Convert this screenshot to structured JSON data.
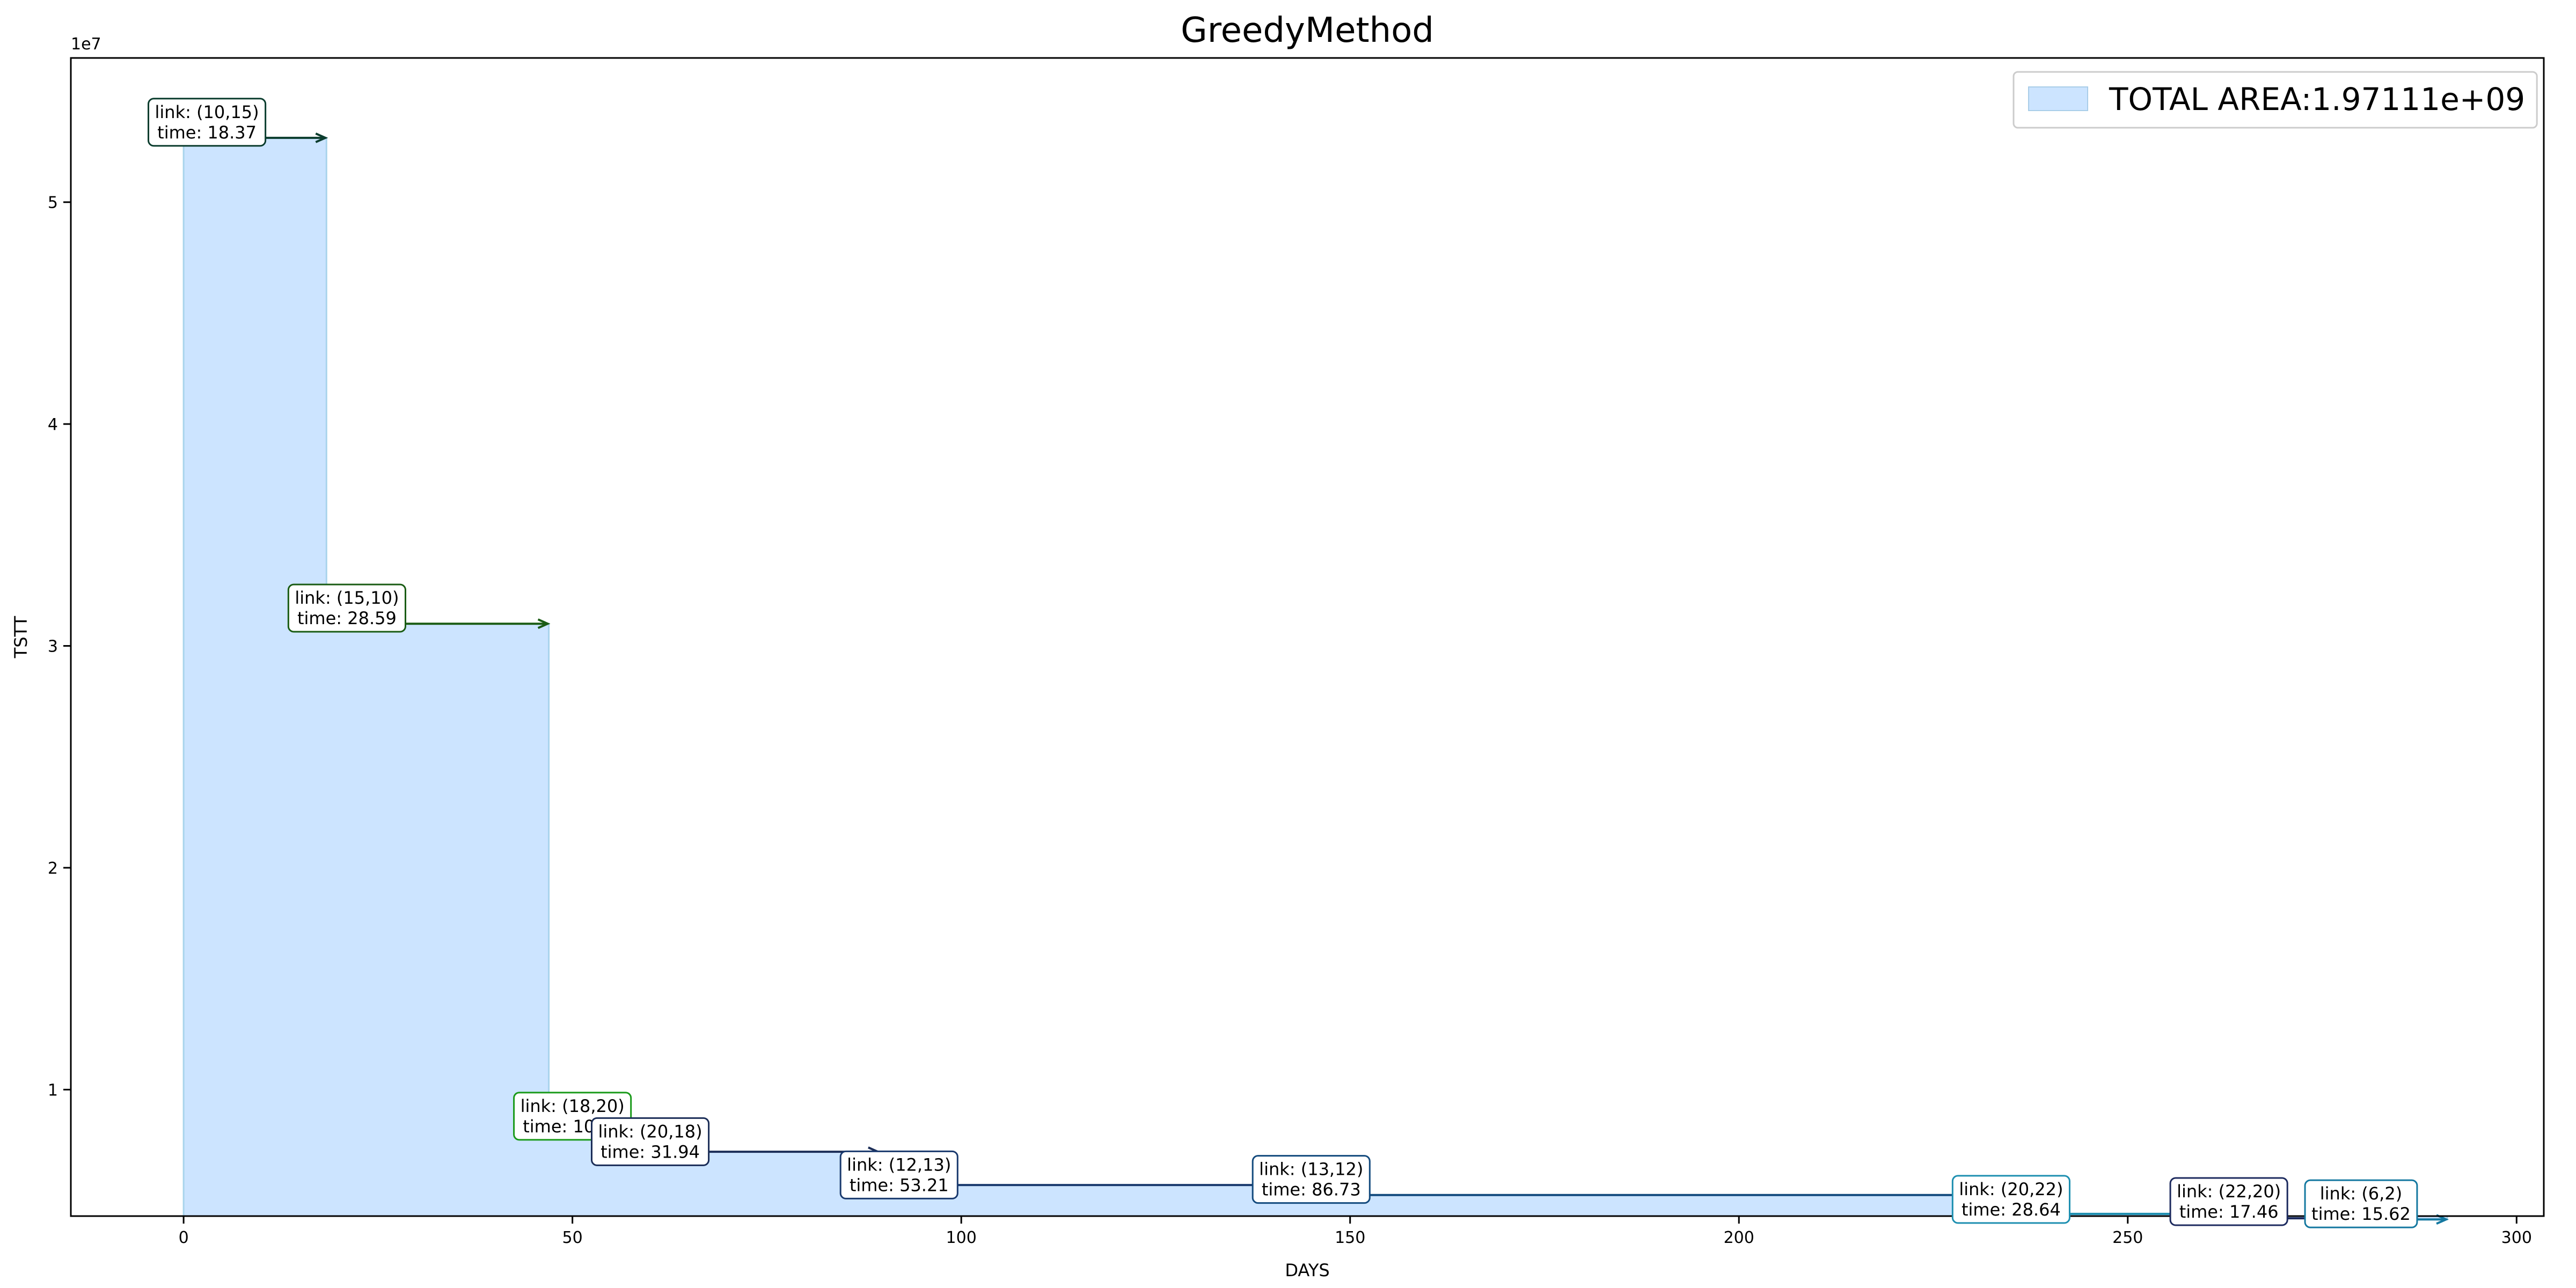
{
  "chart_data": {
    "type": "area",
    "title": "GreedyMethod",
    "xlabel": "DAYS",
    "ylabel": "TSTT",
    "y_scale_label": "1e7",
    "xlim": [
      -14.5,
      303.5
    ],
    "ylim": [
      4300000,
      56500000
    ],
    "xticks": [
      0,
      50,
      100,
      150,
      200,
      250,
      300
    ],
    "yticks": [
      10000000,
      20000000,
      30000000,
      40000000,
      50000000
    ],
    "ytick_labels": [
      "1",
      "2",
      "3",
      "4",
      "5"
    ],
    "legend_position": "top-right",
    "legend": {
      "label": "TOTAL AREA:1.97111e+09",
      "color": "#cce4ff"
    },
    "step_x": [
      0,
      18.37,
      46.96,
      57.48,
      89.42,
      142.63,
      229.36,
      258.0,
      275.46,
      291.08
    ],
    "step_y": [
      52900000,
      31000000,
      8200000,
      7200000,
      5700000,
      5250000,
      4400000,
      4200000,
      4150000
    ],
    "segments": [
      {
        "link": "link: (10,15)",
        "time": "time: 18.37",
        "x_start": 0,
        "x_end": 18.37,
        "y": 52900000,
        "color": "#0b3d2e",
        "label_x": 3,
        "label_y": 53700000
      },
      {
        "link": "link: (15,10)",
        "time": "time: 28.59",
        "x_start": 18.37,
        "x_end": 46.96,
        "y": 31000000,
        "color": "#1a5c14",
        "label_x": 21,
        "label_y": 31800000
      },
      {
        "link": "link: (18,20)",
        "time": "time: 10.52",
        "x_start": 46.96,
        "x_end": 57.48,
        "y": 8200000,
        "color": "#1a9a1a",
        "label_x": 50,
        "label_y": 8900000
      },
      {
        "link": "link: (20,18)",
        "time": "time: 31.94",
        "x_start": 57.48,
        "x_end": 89.42,
        "y": 7200000,
        "color": "#1b2d57",
        "label_x": 60,
        "label_y": 7750000
      },
      {
        "link": "link: (12,13)",
        "time": "time: 53.21",
        "x_start": 89.42,
        "x_end": 142.63,
        "y": 5700000,
        "color": "#1a3a6e",
        "label_x": 92,
        "label_y": 6250000
      },
      {
        "link": "link: (13,12)",
        "time": "time: 86.73",
        "x_start": 142.63,
        "x_end": 229.36,
        "y": 5250000,
        "color": "#134a7d",
        "label_x": 145,
        "label_y": 6050000
      },
      {
        "link": "link: (20,22)",
        "time": "time: 28.64",
        "x_start": 229.36,
        "x_end": 258.0,
        "y": 4400000,
        "color": "#1d8fb0",
        "label_x": 235,
        "label_y": 5150000
      },
      {
        "link": "link: (22,20)",
        "time": "time: 17.46",
        "x_start": 258.0,
        "x_end": 275.46,
        "y": 4200000,
        "color": "#1c2a5e",
        "label_x": 263,
        "label_y": 5050000
      },
      {
        "link": "link: (6,2)",
        "time": "time: 15.62",
        "x_start": 275.46,
        "x_end": 291.08,
        "y": 4150000,
        "color": "#1478a0",
        "label_x": 280,
        "label_y": 4950000
      }
    ]
  }
}
